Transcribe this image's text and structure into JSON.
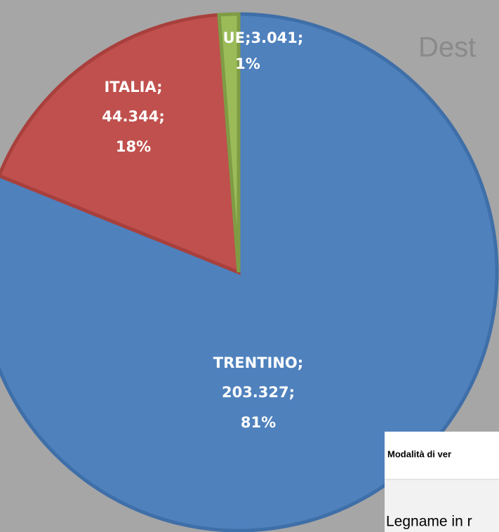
{
  "chart_data": {
    "type": "pie",
    "title": "Dest",
    "categories": [
      "TRENTINO",
      "ITALIA",
      "UE"
    ],
    "values": [
      203327,
      44344,
      3041
    ],
    "value_labels": [
      "203.327",
      "44.344",
      "3.041"
    ],
    "percentages": [
      81,
      18,
      1
    ],
    "percentage_labels": [
      "81%",
      "18%",
      "1%"
    ],
    "label_separator": ";",
    "colors": [
      "#4f81bd",
      "#c0504d",
      "#9bbb59"
    ]
  },
  "table": {
    "header": "Modalità di ver",
    "rows": [
      [
        "Legname in r"
      ]
    ]
  }
}
